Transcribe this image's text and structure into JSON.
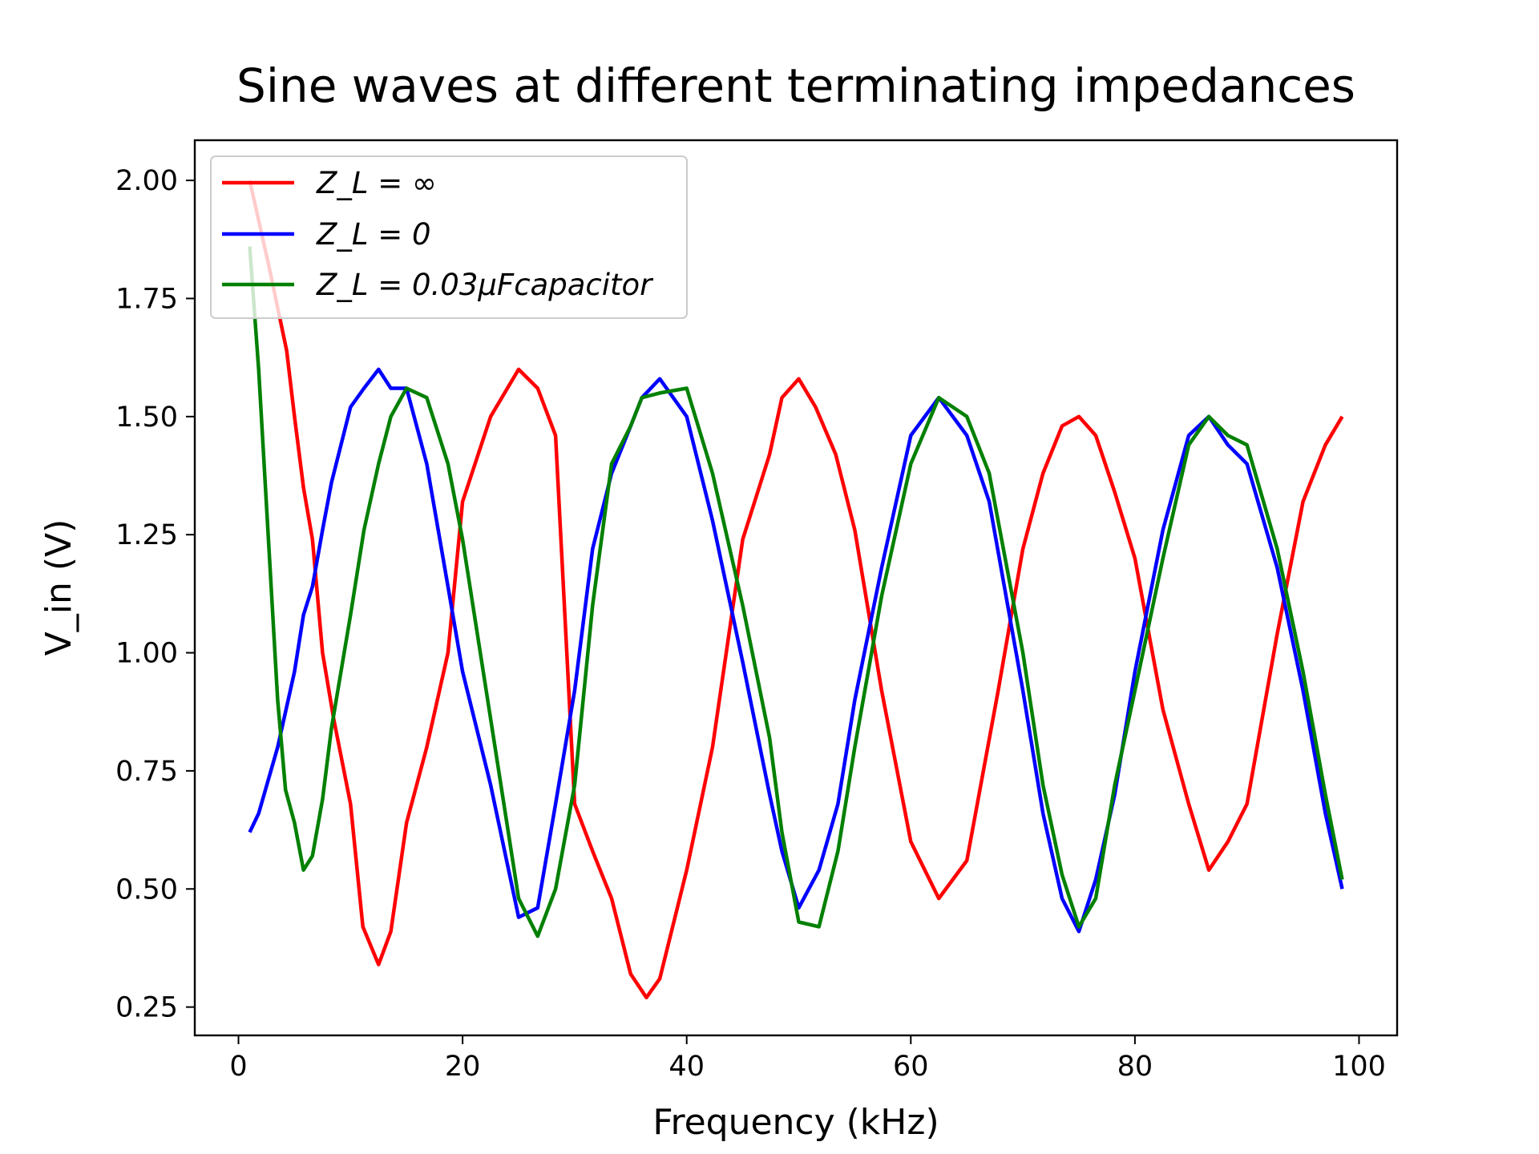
{
  "chart_data": {
    "type": "line",
    "title": "Sine waves at different terminating impedances",
    "xlabel": "Frequency (kHz)",
    "ylabel": "V_in (V)",
    "xlim": [
      -3.9,
      103.4
    ],
    "ylim": [
      0.19,
      2.085
    ],
    "x_ticks": [
      0,
      20,
      40,
      60,
      80,
      100
    ],
    "x_tick_labels": [
      "0",
      "20",
      "40",
      "60",
      "80",
      "100"
    ],
    "y_ticks": [
      0.25,
      0.5,
      0.75,
      1.0,
      1.25,
      1.5,
      1.75,
      2.0
    ],
    "y_tick_labels": [
      "0.25",
      "0.50",
      "0.75",
      "1.00",
      "1.25",
      "1.50",
      "1.75",
      "2.00"
    ],
    "grid": false,
    "legend_position": "top-left",
    "series": [
      {
        "name": "Z_L = ∞",
        "color": "#ff0000",
        "x": [
          1.0,
          2.7,
          4.3,
          5.0,
          5.8,
          6.6,
          7.5,
          8.5,
          10.0,
          11.1,
          12.5,
          13.6,
          15.0,
          16.8,
          18.7,
          20.0,
          22.5,
          25.0,
          26.7,
          28.3,
          30.0,
          31.6,
          33.3,
          35.0,
          36.4,
          37.6,
          40.0,
          42.3,
          45.0,
          47.4,
          48.5,
          50.0,
          51.5,
          53.3,
          55.0,
          57.4,
          60.0,
          62.5,
          65.0,
          67.8,
          70.0,
          71.8,
          73.5,
          75.0,
          76.5,
          78.2,
          80.0,
          82.5,
          84.8,
          86.6,
          88.3,
          90.0,
          92.7,
          95.0,
          97.0,
          98.5
        ],
        "y": [
          2.0,
          1.82,
          1.64,
          1.5,
          1.35,
          1.24,
          1.0,
          0.86,
          0.68,
          0.42,
          0.34,
          0.41,
          0.64,
          0.8,
          1.0,
          1.32,
          1.5,
          1.6,
          1.56,
          1.46,
          0.68,
          0.58,
          0.48,
          0.32,
          0.27,
          0.31,
          0.54,
          0.8,
          1.24,
          1.42,
          1.54,
          1.58,
          1.52,
          1.42,
          1.26,
          0.92,
          0.6,
          0.48,
          0.56,
          0.92,
          1.22,
          1.38,
          1.48,
          1.5,
          1.46,
          1.34,
          1.2,
          0.88,
          0.68,
          0.54,
          0.6,
          0.68,
          1.04,
          1.32,
          1.44,
          1.5
        ]
      },
      {
        "name": "Z_L = 0",
        "color": "#0000ff",
        "x": [
          1.0,
          1.8,
          3.5,
          5.0,
          5.8,
          6.6,
          7.5,
          8.3,
          10.0,
          11.2,
          12.5,
          13.6,
          15.0,
          16.8,
          18.7,
          20.0,
          22.5,
          25.0,
          26.7,
          28.3,
          30.0,
          31.6,
          33.3,
          35.0,
          36.0,
          37.6,
          40.0,
          42.3,
          45.0,
          47.4,
          48.5,
          50.0,
          51.8,
          53.5,
          55.0,
          57.4,
          60.0,
          62.5,
          65.0,
          67.0,
          70.0,
          71.8,
          73.5,
          75.0,
          76.5,
          78.2,
          80.0,
          82.5,
          84.8,
          86.6,
          88.3,
          90.0,
          92.7,
          95.0,
          97.0,
          98.5
        ],
        "y": [
          0.62,
          0.66,
          0.8,
          0.96,
          1.08,
          1.14,
          1.26,
          1.36,
          1.52,
          1.56,
          1.6,
          1.56,
          1.56,
          1.4,
          1.14,
          0.96,
          0.72,
          0.44,
          0.46,
          0.68,
          0.92,
          1.22,
          1.38,
          1.48,
          1.54,
          1.58,
          1.5,
          1.28,
          0.98,
          0.7,
          0.58,
          0.46,
          0.54,
          0.68,
          0.9,
          1.18,
          1.46,
          1.54,
          1.46,
          1.32,
          0.92,
          0.66,
          0.48,
          0.41,
          0.52,
          0.7,
          0.96,
          1.26,
          1.46,
          1.5,
          1.44,
          1.4,
          1.18,
          0.92,
          0.66,
          0.5
        ]
      },
      {
        "name": "Z_L = 0.03μFcapacitor",
        "color": "#008000",
        "x": [
          1.0,
          1.8,
          3.5,
          4.2,
          5.0,
          5.8,
          6.6,
          7.5,
          8.3,
          10.0,
          11.2,
          12.5,
          13.6,
          15.0,
          16.8,
          18.7,
          20.0,
          22.5,
          25.0,
          26.7,
          28.3,
          30.0,
          31.6,
          33.3,
          35.0,
          36.0,
          37.6,
          40.0,
          42.3,
          45.0,
          47.4,
          48.5,
          50.0,
          51.8,
          53.5,
          55.0,
          57.4,
          60.0,
          62.5,
          65.0,
          67.0,
          70.0,
          71.8,
          73.5,
          75.0,
          76.5,
          78.2,
          80.0,
          82.5,
          84.8,
          86.6,
          88.3,
          90.0,
          92.7,
          95.0,
          97.0,
          98.5
        ],
        "y": [
          1.86,
          1.6,
          0.9,
          0.71,
          0.64,
          0.54,
          0.57,
          0.69,
          0.84,
          1.08,
          1.26,
          1.4,
          1.5,
          1.56,
          1.54,
          1.4,
          1.24,
          0.86,
          0.48,
          0.4,
          0.5,
          0.72,
          1.1,
          1.4,
          1.48,
          1.54,
          1.55,
          1.56,
          1.38,
          1.1,
          0.82,
          0.62,
          0.43,
          0.42,
          0.58,
          0.8,
          1.12,
          1.4,
          1.54,
          1.5,
          1.38,
          1.0,
          0.72,
          0.53,
          0.42,
          0.48,
          0.72,
          0.92,
          1.2,
          1.44,
          1.5,
          1.46,
          1.44,
          1.22,
          0.96,
          0.7,
          0.52
        ]
      }
    ]
  }
}
